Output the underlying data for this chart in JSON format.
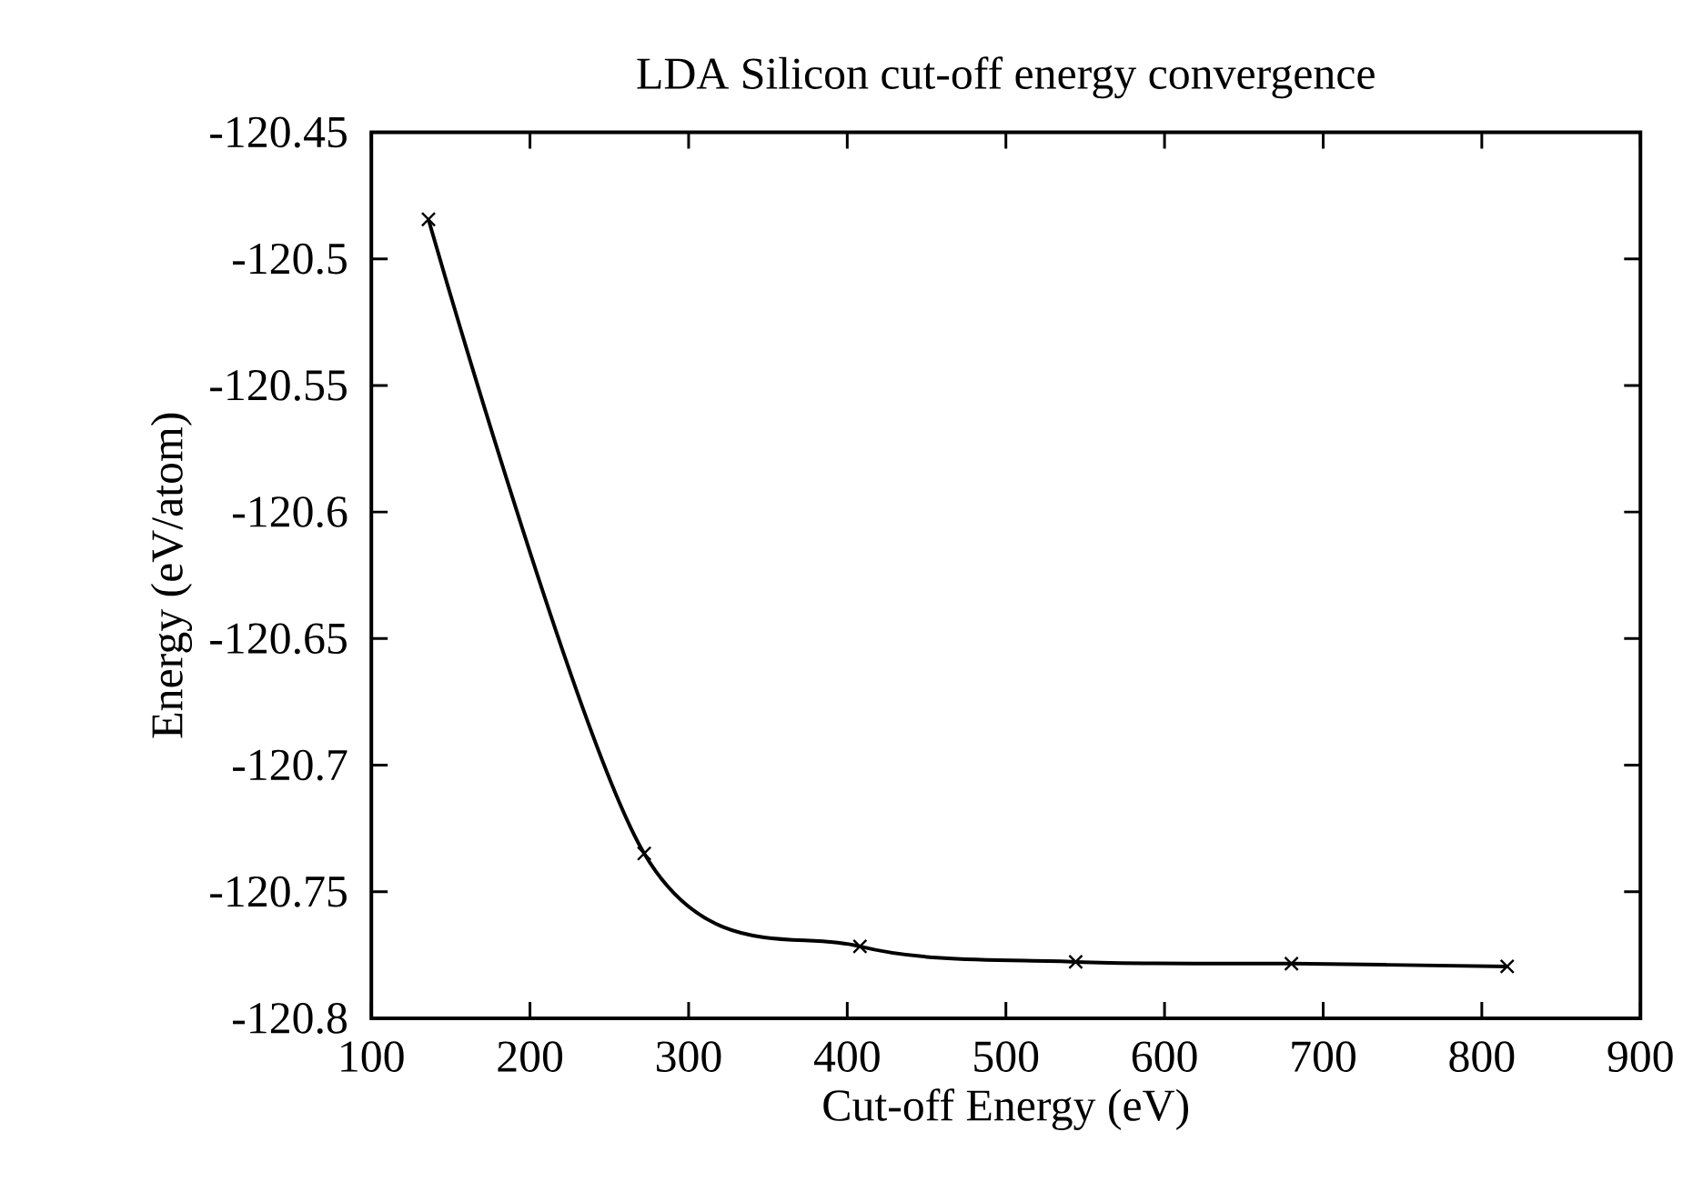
{
  "chart_data": {
    "type": "line",
    "title": "LDA Silicon cut-off energy convergence",
    "xlabel": "Cut-off Energy (eV)",
    "ylabel": "Energy (eV/atom)",
    "x": [
      136,
      272,
      408,
      544,
      680,
      816
    ],
    "series": [
      {
        "color": "#000000",
        "values": [
          -120.4844,
          -120.7349,
          -120.7716,
          -120.7777,
          -120.7784,
          -120.7795
        ]
      }
    ],
    "xlim": [
      100,
      900
    ],
    "xticks": [
      100,
      200,
      300,
      400,
      500,
      600,
      700,
      800,
      900
    ],
    "ylim": [
      -120.8,
      -120.45
    ],
    "yticks": [
      -120.8,
      -120.75,
      -120.7,
      -120.65,
      -120.6,
      -120.55,
      -120.5,
      -120.45
    ],
    "marker": "cross",
    "line_style": "solid"
  }
}
